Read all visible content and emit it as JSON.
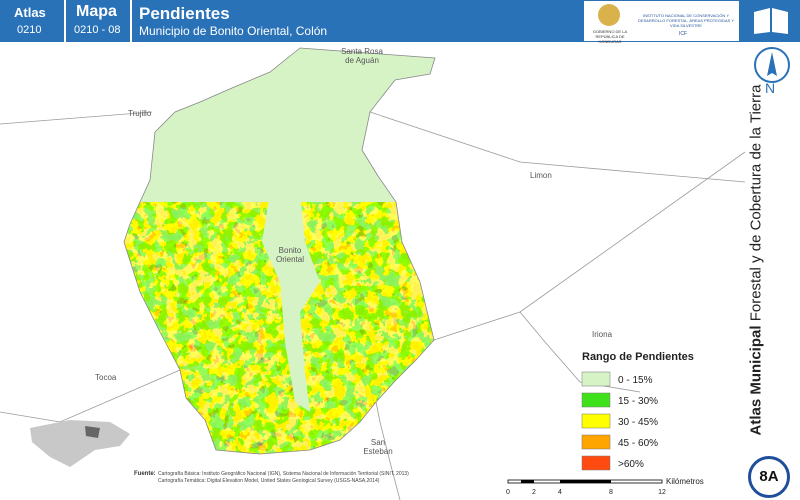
{
  "header": {
    "atlas_label": "Atlas",
    "atlas_code": "0210",
    "map_label": "Mapa",
    "map_code": "0210 - 08",
    "title": "Pendientes",
    "subtitle": "Municipio de Bonito Oriental, Colón",
    "logo_left": "GOBIERNO DE LA REPÚBLICA DE HONDURAS",
    "logo_right": "INSTITUTO NACIONAL DE CONSERVACIÓN Y DESARROLLO FORESTAL, ÁREAS PROTEGIDAS Y VIDA SILVESTRE",
    "logo_abbr": "ICF"
  },
  "places": {
    "santa_rosa_1": "Santa Rosa",
    "santa_rosa_2": "de Aguán",
    "trujillo": "Trujillo",
    "limon": "Limon",
    "bonito_1": "Bonito",
    "bonito_2": "Oriental",
    "iriona": "Iriona",
    "tocoa": "Tocoa",
    "san_esteban_1": "San",
    "san_esteban_2": "Esteban"
  },
  "legend": {
    "title": "Rango de Pendientes",
    "items": [
      {
        "label": "0 - 15%",
        "color": "#d6f3c6"
      },
      {
        "label": "15 - 30%",
        "color": "#3fe21a"
      },
      {
        "label": "30 - 45%",
        "color": "#ffff00"
      },
      {
        "label": "45 - 60%",
        "color": "#ffa500"
      },
      {
        "label": ">60%",
        "color": "#ff4a10"
      }
    ]
  },
  "sidebar": {
    "north": "N",
    "title_bold": "Atlas Municipal",
    "title_rest": "Forestal y de Cobertura de la Tierra",
    "page": "8A"
  },
  "source": {
    "label": "Fuente:",
    "line1": "Cartografía Básica: Instituto Geográfico Nacional (IGN), Sistema Nacional de Información Territorial (SINIT, 2013)",
    "line2": "Cartografía Temática: Digital Elevation Model, United States Geological Survey (USGS-NASA,2014)"
  },
  "scale": {
    "ticks": [
      "0",
      "2",
      "4",
      "8",
      "12"
    ],
    "unit": "Kilómetros"
  }
}
